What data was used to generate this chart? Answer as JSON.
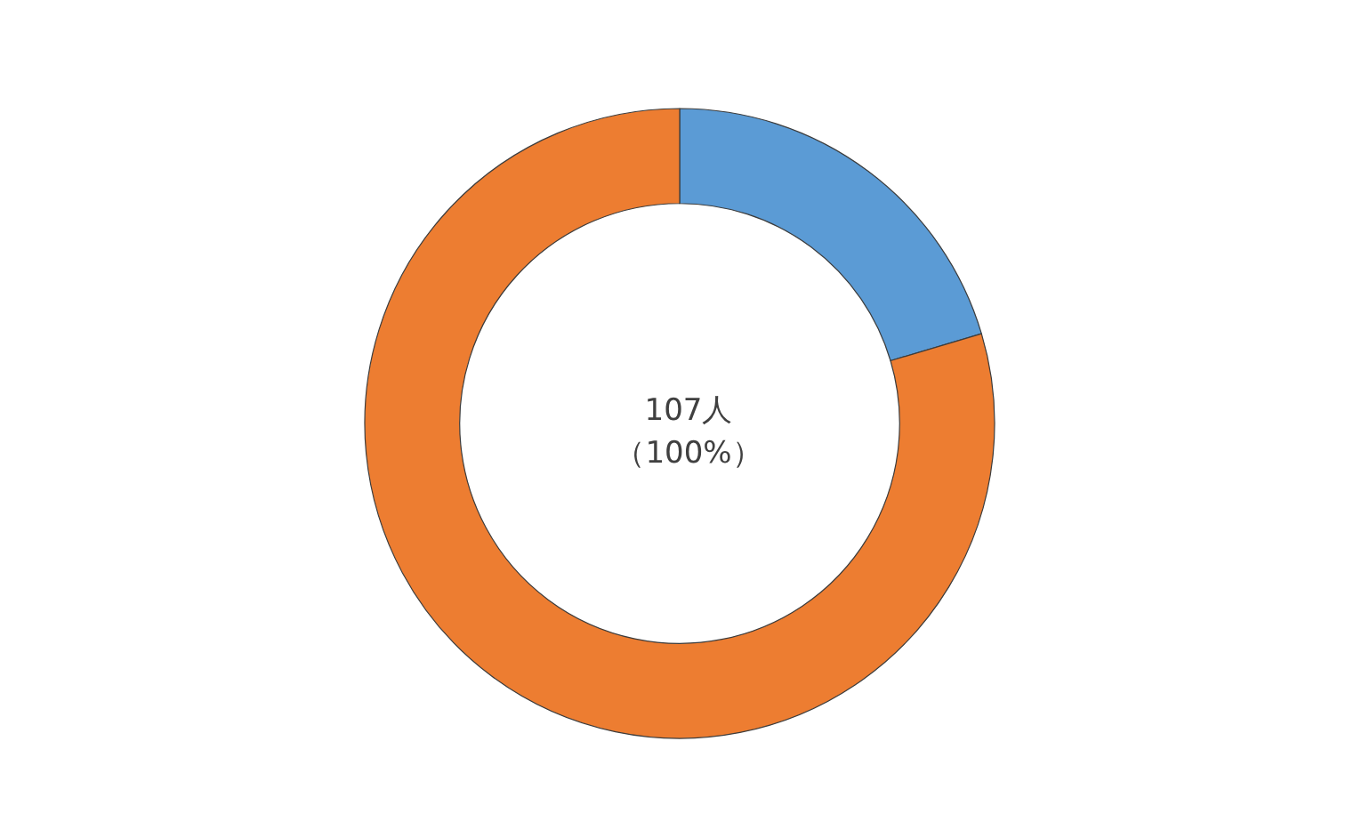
{
  "chart_data": {
    "type": "donut",
    "categories": [
      null,
      null
    ],
    "values": [
      20.4,
      79.6
    ],
    "colors": [
      "#5b9bd5",
      "#ed7d31"
    ],
    "annotations": [
      "107人",
      "（100%）"
    ]
  }
}
